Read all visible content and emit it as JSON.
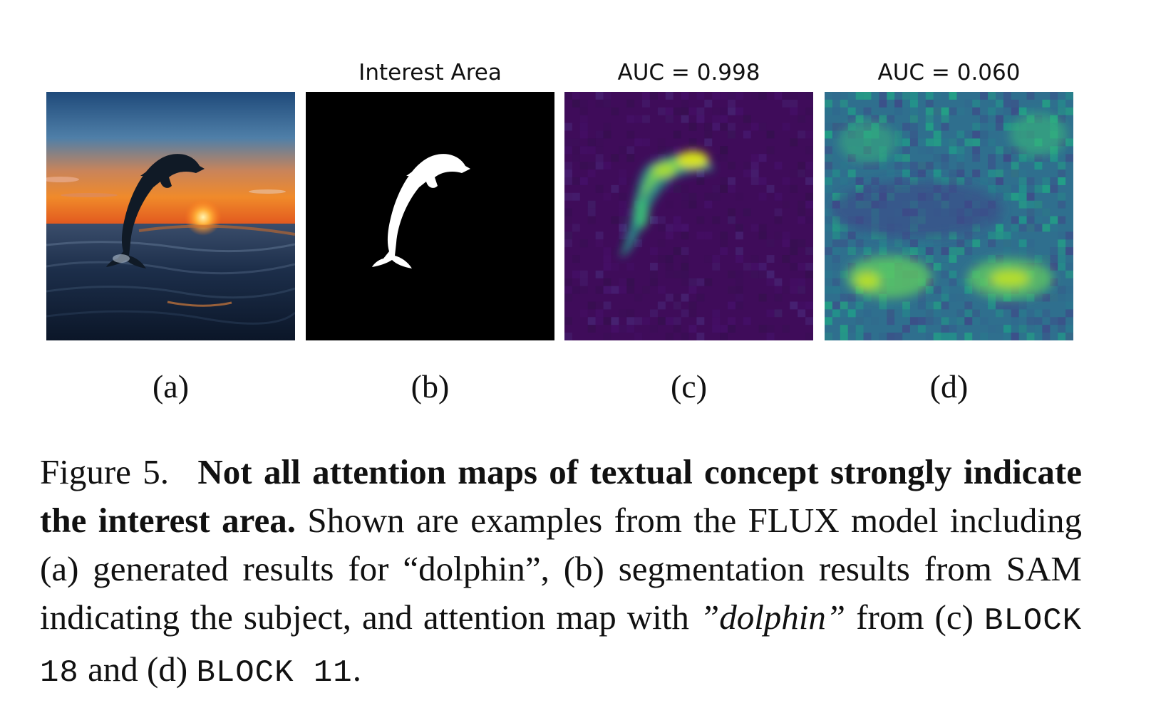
{
  "panels": [
    {
      "id": "a",
      "label": "(a)",
      "title": "",
      "image": "generated dolphin at sunset over the ocean"
    },
    {
      "id": "b",
      "label": "(b)",
      "title": "Interest Area",
      "image": "white dolphin segmentation mask on black"
    },
    {
      "id": "c",
      "label": "(c)",
      "title": "AUC = 0.998",
      "image": "attention map highlighting dolphin region"
    },
    {
      "id": "d",
      "label": "(d)",
      "title": "AUC = 0.060",
      "image": "diffuse noisy attention map"
    }
  ],
  "colormap": {
    "low": "#440154",
    "mid": "#21918c",
    "high": "#fde725"
  },
  "caption": {
    "figure_label": "Figure 5.",
    "bold_title": "Not all attention maps of textual concept strongly indicate the interest area.",
    "text_1": "Shown are examples from the FLUX model including (a) generated results for “dolphin”, (b) segmentation results from SAM indicating the subject, and attention map with",
    "italic_term": "”dolphin”",
    "text_2": "from (c)",
    "block_c": "BLOCK 18",
    "text_3": "and (d)",
    "block_d": "BLOCK 11",
    "text_4": "."
  }
}
